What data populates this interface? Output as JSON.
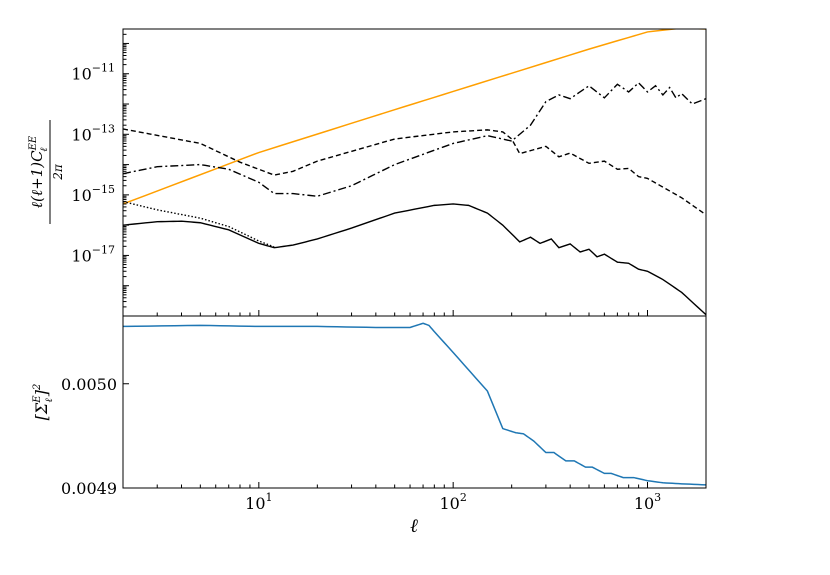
{
  "chart_data": [
    {
      "type": "line",
      "title": "",
      "xlabel": "ℓ",
      "ylabel": "ℓ(ℓ+1)C_ℓ^EE / 2π",
      "ylabel_parts": {
        "prefix": "ℓ(ℓ+1)C",
        "sub": "ℓ",
        "sup": "EE",
        "denominator": "2π"
      },
      "x_scale": "log",
      "y_scale": "log",
      "xlim": [
        2,
        2000
      ],
      "ylim": [
        1e-19,
        3e-10
      ],
      "yticks": [
        {
          "value": 1e-11,
          "base": "10",
          "exp": "−11"
        },
        {
          "value": 1e-13,
          "base": "10",
          "exp": "−13"
        },
        {
          "value": 1e-15,
          "base": "10",
          "exp": "−15"
        },
        {
          "value": 1e-17,
          "base": "10",
          "exp": "−17"
        }
      ],
      "series": [
        {
          "style": "solid",
          "color": "#ff9f00",
          "x": [
            2,
            10,
            50,
            100,
            500,
            1000,
            1500,
            2000
          ],
          "y": [
            5e-16,
            2.5e-14,
            6.5e-13,
            2.6e-12,
            6.5e-11,
            2.4e-10,
            3.2e-10,
            3e-10
          ]
        },
        {
          "style": "dashed",
          "color": "#000000",
          "x": [
            2,
            5,
            8,
            12,
            15,
            20,
            50,
            100,
            150,
            180,
            200,
            220,
            300,
            350,
            400,
            500,
            600,
            700,
            800,
            900,
            1000,
            1200,
            1500,
            2000
          ],
          "y": [
            1.5e-13,
            5e-14,
            1.2e-14,
            4.5e-15,
            6e-15,
            1.3e-14,
            7e-14,
            1.2e-13,
            1.4e-13,
            1.2e-13,
            7e-14,
            2.3e-14,
            4e-14,
            1.8e-14,
            2.4e-14,
            1.1e-14,
            1.3e-14,
            7e-15,
            7.5e-15,
            4e-15,
            3.5e-15,
            1.8e-15,
            8e-16,
            2.2e-16
          ]
        },
        {
          "style": "dashdot",
          "color": "#000000",
          "x": [
            2,
            3,
            5,
            7,
            10,
            12,
            15,
            20,
            30,
            50,
            100,
            150,
            200,
            250,
            300,
            350,
            400,
            500,
            600,
            700,
            800,
            900,
            1000,
            1100,
            1200,
            1300,
            1400,
            1500,
            1700,
            2000
          ],
          "y": [
            5e-15,
            8.5e-15,
            1e-14,
            7e-15,
            2.6e-15,
            1.1e-15,
            1.1e-15,
            9e-16,
            2e-15,
            1e-14,
            5e-14,
            9e-14,
            6e-14,
            2e-13,
            1.2e-12,
            2e-12,
            1.5e-12,
            4e-12,
            1.6e-12,
            4.5e-12,
            2.5e-12,
            5e-12,
            2.5e-12,
            4e-12,
            2e-12,
            3.5e-12,
            1.6e-12,
            2.2e-12,
            1e-12,
            1.5e-12
          ]
        },
        {
          "style": "solid",
          "color": "#000000",
          "x": [
            2,
            3,
            4,
            5,
            7,
            10,
            12,
            15,
            20,
            30,
            50,
            80,
            100,
            120,
            150,
            180,
            220,
            250,
            280,
            320,
            350,
            400,
            450,
            500,
            550,
            600,
            700,
            800,
            900,
            1000,
            1200,
            1500,
            2000
          ],
          "y": [
            1e-16,
            1.3e-16,
            1.35e-16,
            1.2e-16,
            7e-17,
            2.5e-17,
            1.8e-17,
            2.2e-17,
            3.5e-17,
            8e-17,
            2.5e-16,
            4.5e-16,
            5e-16,
            4.5e-16,
            2.5e-16,
            1e-16,
            2.8e-17,
            4e-17,
            2.5e-17,
            3.5e-17,
            1.8e-17,
            2.4e-17,
            1.3e-17,
            1.6e-17,
            9e-18,
            1.1e-17,
            6e-18,
            5.5e-18,
            3.5e-18,
            3e-18,
            1.6e-18,
            6e-19,
            1.1e-19
          ]
        },
        {
          "style": "dotted",
          "color": "#000000",
          "x": [
            2,
            3,
            5,
            7,
            10,
            12
          ],
          "y": [
            6e-16,
            3.2e-16,
            1.7e-16,
            9e-17,
            3e-17,
            1.9e-17
          ]
        }
      ]
    },
    {
      "type": "line",
      "title": "",
      "xlabel": "ℓ",
      "ylabel": "[Σ_ℓ^E]^2",
      "ylabel_parts": {
        "prefix": "[Σ",
        "sub": "ℓ",
        "sup": "E",
        "suffix": "]",
        "outer_sup": "2"
      },
      "x_scale": "log",
      "y_scale": "linear",
      "xlim": [
        2,
        2000
      ],
      "ylim": [
        0.0049,
        0.005065
      ],
      "xticks": [
        {
          "value": 10,
          "base": "10",
          "exp": "1"
        },
        {
          "value": 100,
          "base": "10",
          "exp": "2"
        },
        {
          "value": 1000,
          "base": "10",
          "exp": "3"
        }
      ],
      "yticks": [
        {
          "value": 0.0049,
          "label": "0.0049"
        },
        {
          "value": 0.005,
          "label": "0.0050"
        }
      ],
      "series": [
        {
          "style": "solid",
          "color": "#1f77b4",
          "x": [
            2,
            5,
            10,
            20,
            40,
            60,
            70,
            75,
            80,
            100,
            150,
            180,
            210,
            230,
            260,
            300,
            330,
            380,
            420,
            480,
            520,
            600,
            650,
            750,
            850,
            1000,
            1200,
            1500,
            2000
          ],
          "y": [
            0.005055,
            0.005056,
            0.005055,
            0.005055,
            0.005054,
            0.005054,
            0.005058,
            0.005056,
            0.00505,
            0.00503,
            0.004993,
            0.004957,
            0.004953,
            0.004952,
            0.004945,
            0.004934,
            0.004934,
            0.004926,
            0.004926,
            0.00492,
            0.00492,
            0.004914,
            0.004914,
            0.00491,
            0.00491,
            0.004907,
            0.004905,
            0.004904,
            0.004903
          ]
        }
      ]
    }
  ]
}
